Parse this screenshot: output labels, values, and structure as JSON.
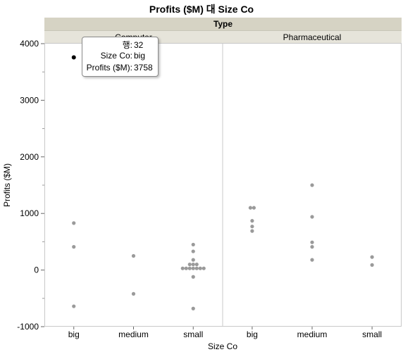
{
  "title": "Profits ($M) 대 Size Co",
  "group_header": "Type",
  "panels": [
    "Computer",
    "Pharmaceutical"
  ],
  "tooltip": {
    "rows": [
      {
        "key": "행:",
        "value": "32"
      },
      {
        "key": "Size Co:",
        "value": "big"
      },
      {
        "key": "Profits ($M):",
        "value": "3758"
      }
    ]
  },
  "colors": {
    "point": "#9a9a9a",
    "highlight": "#000000"
  },
  "chart_data": {
    "type": "scatter",
    "title": "Profits ($M) 대 Size Co",
    "xlabel": "Size Co",
    "ylabel": "Profits ($M)",
    "ylim": [
      -1000,
      4000
    ],
    "yticks": [
      -1000,
      0,
      1000,
      2000,
      3000,
      4000
    ],
    "categories": [
      "big",
      "medium",
      "small"
    ],
    "grid": false,
    "panels": [
      {
        "name": "Computer",
        "series": {
          "big": [
            3758,
            830,
            410,
            -640
          ],
          "medium": [
            250,
            -420
          ],
          "small": [
            450,
            330,
            180,
            100,
            100,
            100,
            30,
            30,
            30,
            30,
            30,
            30,
            30,
            -120,
            -680
          ]
        }
      },
      {
        "name": "Pharmaceutical",
        "series": {
          "big": [
            1100,
            1100,
            870,
            770,
            690
          ],
          "medium": [
            1500,
            940,
            490,
            410,
            180
          ],
          "small": [
            230,
            90
          ]
        }
      }
    ],
    "highlight": {
      "panel": 0,
      "category": "big",
      "value": 3758
    }
  }
}
